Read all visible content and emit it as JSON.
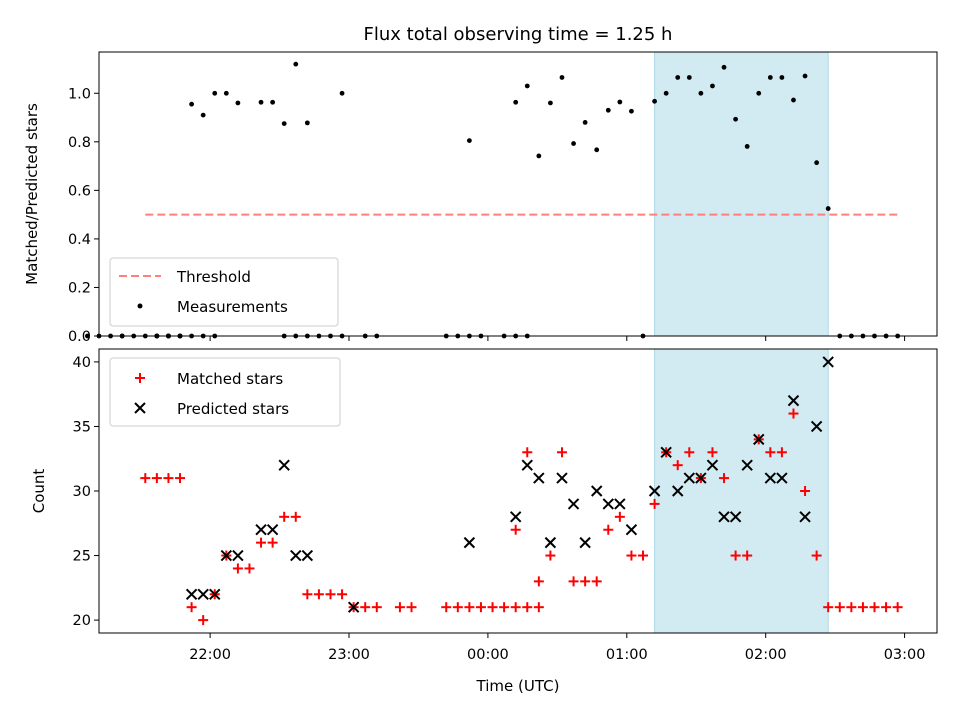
{
  "title": "Flux total observing time = 1.25 h",
  "colors": {
    "threshold": "#ff7f7f",
    "measurement": "#000000",
    "matched": "#ff0000",
    "predicted": "#000000",
    "highlight": "#add8e6"
  },
  "chart_data": [
    {
      "type": "scatter",
      "ylabel": "Matched/Predicted stars",
      "xlim": [
        "21:12",
        "03:14"
      ],
      "ylim": [
        0,
        1.17
      ],
      "yticks": [
        "0.0",
        "0.2",
        "0.4",
        "0.6",
        "0.8",
        "1.0"
      ],
      "highlight": [
        "01:12",
        "02:27"
      ],
      "threshold": {
        "name": "Threshold",
        "value": 0.5,
        "x": [
          "21:32",
          "02:57"
        ]
      },
      "series": [
        {
          "name": "Measurements",
          "points": [
            [
              "21:32",
              0
            ],
            [
              "21:37",
              0
            ],
            [
              "21:42",
              0
            ],
            [
              "21:47",
              0
            ],
            [
              "21:42",
              0
            ],
            [
              "21:47",
              0
            ],
            [
              "21:42",
              0
            ],
            [
              "21:47",
              0
            ],
            [
              "21:37",
              0
            ],
            [
              "21:42",
              0
            ],
            [
              "21:37",
              0
            ],
            [
              "22:02",
              0
            ],
            [
              "21:52",
              0
            ],
            [
              "21:57",
              0
            ],
            [
              "22:32",
              0
            ],
            [
              "22:37",
              0
            ],
            [
              "22:42",
              0
            ],
            [
              "22:47",
              0
            ],
            [
              "22:52",
              0
            ],
            [
              "22:57",
              0
            ],
            [
              "23:07",
              0
            ],
            [
              "23:12",
              0
            ],
            [
              "23:42",
              0
            ],
            [
              "23:47",
              0
            ],
            [
              "23:52",
              0
            ],
            [
              "23:57",
              0
            ],
            [
              "00:07",
              0
            ],
            [
              "00:12",
              0
            ],
            [
              "00:17",
              0
            ],
            [
              "01:07",
              0
            ],
            [
              "02:32",
              0
            ],
            [
              "02:37",
              0
            ],
            [
              "02:42",
              0
            ],
            [
              "02:47",
              0
            ],
            [
              "02:52",
              0
            ],
            [
              "02:57",
              0
            ],
            [
              "21:22",
              0
            ],
            [
              "21:27",
              0
            ],
            [
              "21:22",
              0
            ],
            [
              "21:17",
              0
            ],
            [
              "21:12",
              0
            ],
            [
              "21:07",
              0
            ],
            [
              "21:52",
              0.955
            ],
            [
              "21:57",
              0.91
            ],
            [
              "22:02",
              1.0
            ],
            [
              "22:07",
              1.0
            ],
            [
              "22:12",
              0.96
            ],
            [
              "22:22",
              0.963
            ],
            [
              "22:27",
              0.963
            ],
            [
              "22:32",
              0.875
            ],
            [
              "22:37",
              1.12
            ],
            [
              "22:42",
              0.878
            ],
            [
              "22:57",
              1.0
            ],
            [
              "23:52",
              0.805
            ],
            [
              "00:12",
              0.963
            ],
            [
              "00:17",
              1.03
            ],
            [
              "00:22",
              0.742
            ],
            [
              "00:27",
              0.96
            ],
            [
              "00:32",
              1.065
            ],
            [
              "00:37",
              0.793
            ],
            [
              "00:42",
              0.88
            ],
            [
              "00:47",
              0.767
            ],
            [
              "00:52",
              0.93
            ],
            [
              "00:57",
              0.964
            ],
            [
              "01:02",
              0.926
            ],
            [
              "01:12",
              0.967
            ],
            [
              "01:17",
              1.0
            ],
            [
              "01:22",
              1.065
            ],
            [
              "01:27",
              1.065
            ],
            [
              "01:32",
              1.0
            ],
            [
              "01:37",
              1.03
            ],
            [
              "01:42",
              1.107
            ],
            [
              "01:47",
              0.893
            ],
            [
              "01:52",
              0.781
            ],
            [
              "01:57",
              1.0
            ],
            [
              "02:02",
              1.065
            ],
            [
              "02:07",
              1.065
            ],
            [
              "02:12",
              0.972
            ],
            [
              "02:17",
              1.071
            ],
            [
              "02:22",
              0.714
            ],
            [
              "02:27",
              0.525
            ]
          ]
        }
      ],
      "legend": "lower-left"
    },
    {
      "type": "scatter",
      "xlabel": "Time (UTC)",
      "ylabel": "Count",
      "xlim": [
        "21:12",
        "03:14"
      ],
      "ylim": [
        19,
        41
      ],
      "yticks": [
        "20",
        "25",
        "30",
        "35",
        "40"
      ],
      "xticks": [
        "22:00",
        "23:00",
        "00:00",
        "01:00",
        "02:00",
        "03:00"
      ],
      "highlight": [
        "01:12",
        "02:27"
      ],
      "series": [
        {
          "name": "Matched stars",
          "marker": "plus",
          "points": [
            [
              "21:32",
              31
            ],
            [
              "21:37",
              31
            ],
            [
              "21:42",
              31
            ],
            [
              "21:47",
              31
            ],
            [
              "21:52",
              21
            ],
            [
              "21:57",
              20
            ],
            [
              "22:02",
              22
            ],
            [
              "22:07",
              25
            ],
            [
              "22:12",
              24
            ],
            [
              "22:17",
              24
            ],
            [
              "22:22",
              26
            ],
            [
              "22:27",
              26
            ],
            [
              "22:32",
              28
            ],
            [
              "22:37",
              28
            ],
            [
              "22:42",
              22
            ],
            [
              "22:47",
              22
            ],
            [
              "22:52",
              22
            ],
            [
              "22:57",
              22
            ],
            [
              "23:02",
              21
            ],
            [
              "23:07",
              21
            ],
            [
              "23:12",
              21
            ],
            [
              "23:22",
              21
            ],
            [
              "23:27",
              21
            ],
            [
              "23:42",
              21
            ],
            [
              "23:47",
              21
            ],
            [
              "23:52",
              21
            ],
            [
              "23:57",
              21
            ],
            [
              "00:02",
              21
            ],
            [
              "00:07",
              21
            ],
            [
              "00:12",
              21
            ],
            [
              "00:17",
              21
            ],
            [
              "00:22",
              21
            ],
            [
              "00:12",
              27
            ],
            [
              "00:17",
              33
            ],
            [
              "00:22",
              23
            ],
            [
              "00:27",
              25
            ],
            [
              "00:32",
              33
            ],
            [
              "00:37",
              23
            ],
            [
              "00:42",
              23
            ],
            [
              "00:47",
              23
            ],
            [
              "00:52",
              27
            ],
            [
              "00:57",
              28
            ],
            [
              "01:02",
              25
            ],
            [
              "01:07",
              25
            ],
            [
              "01:12",
              29
            ],
            [
              "01:17",
              33
            ],
            [
              "01:22",
              32
            ],
            [
              "01:27",
              33
            ],
            [
              "01:32",
              31
            ],
            [
              "01:37",
              33
            ],
            [
              "01:42",
              31
            ],
            [
              "01:47",
              25
            ],
            [
              "01:52",
              25
            ],
            [
              "01:57",
              34
            ],
            [
              "02:02",
              33
            ],
            [
              "02:07",
              33
            ],
            [
              "02:12",
              36
            ],
            [
              "02:17",
              30
            ],
            [
              "02:22",
              25
            ],
            [
              "02:27",
              21
            ],
            [
              "02:32",
              21
            ],
            [
              "02:37",
              21
            ],
            [
              "02:42",
              21
            ],
            [
              "02:47",
              21
            ],
            [
              "02:52",
              21
            ],
            [
              "02:57",
              21
            ]
          ]
        },
        {
          "name": "Predicted stars",
          "marker": "x",
          "points": [
            [
              "21:52",
              22
            ],
            [
              "21:57",
              22
            ],
            [
              "22:02",
              22
            ],
            [
              "22:07",
              25
            ],
            [
              "22:12",
              25
            ],
            [
              "22:22",
              27
            ],
            [
              "22:27",
              27
            ],
            [
              "22:32",
              32
            ],
            [
              "22:37",
              25
            ],
            [
              "22:42",
              25
            ],
            [
              "23:02",
              21
            ],
            [
              "23:52",
              26
            ],
            [
              "00:12",
              28
            ],
            [
              "00:17",
              32
            ],
            [
              "00:22",
              31
            ],
            [
              "00:27",
              26
            ],
            [
              "00:32",
              31
            ],
            [
              "00:37",
              29
            ],
            [
              "00:42",
              26
            ],
            [
              "00:47",
              30
            ],
            [
              "00:52",
              29
            ],
            [
              "00:57",
              29
            ],
            [
              "01:02",
              27
            ],
            [
              "01:12",
              30
            ],
            [
              "01:17",
              33
            ],
            [
              "01:22",
              30
            ],
            [
              "01:27",
              31
            ],
            [
              "01:32",
              31
            ],
            [
              "01:37",
              32
            ],
            [
              "01:42",
              28
            ],
            [
              "01:47",
              28
            ],
            [
              "01:52",
              32
            ],
            [
              "01:57",
              34
            ],
            [
              "02:02",
              31
            ],
            [
              "02:07",
              31
            ],
            [
              "02:12",
              37
            ],
            [
              "02:17",
              28
            ],
            [
              "02:22",
              35
            ],
            [
              "02:27",
              40
            ]
          ]
        }
      ],
      "legend": "upper-left"
    }
  ]
}
